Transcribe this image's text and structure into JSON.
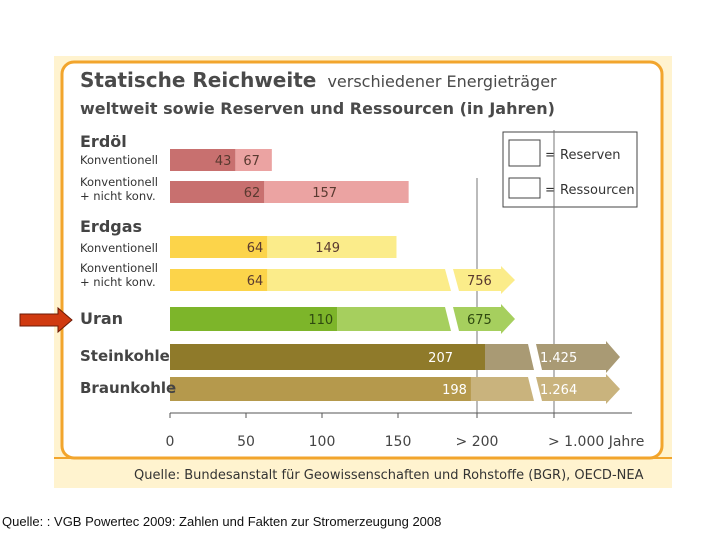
{
  "title_bold": "Statische Reichweite",
  "title_rest": "verschiedener Energieträger",
  "subtitle": "weltweit sowie Reserven und Ressourcen (in Jahren)",
  "legend": {
    "reserves": "= Reserven",
    "resources": "= Ressourcen"
  },
  "source": "Quelle: Bundesanstalt für Geowissenschaften und Rohstoffe (BGR), OECD-NEA",
  "caption": "Quelle: : VGB Powertec 2009: Zahlen und Fakten zur Stromerzeugung 2008",
  "arrow_marker_color": "#d03a10",
  "chart_data": {
    "type": "bar",
    "orientation": "horizontal",
    "stacked": true,
    "xlim": [
      0,
      200
    ],
    "x_ticks": [
      "0",
      "50",
      "100",
      "150",
      "> 200",
      ">  1.000 Jahre"
    ],
    "series": [
      {
        "name": "Reserven"
      },
      {
        "name": "Ressourcen"
      }
    ],
    "groups": [
      {
        "label": "Erdöl",
        "rows": [
          {
            "label": "Konventionell",
            "reserve": 43,
            "resource": 67,
            "reserve_label": "43",
            "resource_label": "67",
            "reserve_color": "#c8706f",
            "resource_color": "#eba3a2"
          },
          {
            "label": "Konventionell\n+ nicht konv.",
            "reserve": 62,
            "resource": 157,
            "reserve_label": "62",
            "resource_label": "157",
            "reserve_color": "#c8706f",
            "resource_color": "#eba3a2"
          }
        ]
      },
      {
        "label": "Erdgas",
        "rows": [
          {
            "label": "Konventionell",
            "reserve": 64,
            "resource": 149,
            "reserve_label": "64",
            "resource_label": "149",
            "reserve_color": "#fcd44a",
            "resource_color": "#fbec8a"
          },
          {
            "label": "Konventionell\n+ nicht konv.",
            "reserve": 64,
            "resource": 756,
            "reserve_label": "64",
            "resource_label": "756",
            "reserve_color": "#fcd44a",
            "resource_color": "#fbec8a",
            "resource_beyond_axis": true
          }
        ]
      },
      {
        "label": "Uran",
        "rows": [
          {
            "label": "",
            "reserve": 110,
            "resource": 675,
            "reserve_label": "110",
            "resource_label": "675",
            "reserve_color": "#7db52a",
            "resource_color": "#a6cf5e",
            "resource_beyond_axis": true
          }
        ]
      },
      {
        "label": "Steinkohle",
        "rows": [
          {
            "label": "",
            "reserve": 207,
            "resource": 1425,
            "reserve_label": "207",
            "resource_label": "1.425",
            "reserve_color": "#8f7a2a",
            "resource_color": "#a99a74",
            "reserve_beyond_axis": true,
            "resource_beyond_axis": true
          }
        ]
      },
      {
        "label": "Braunkohle",
        "rows": [
          {
            "label": "",
            "reserve": 198,
            "resource": 1264,
            "reserve_label": "198",
            "resource_label": "1.264",
            "reserve_color": "#b5994c",
            "resource_color": "#c9b37d",
            "resource_beyond_axis": true
          }
        ]
      }
    ]
  }
}
